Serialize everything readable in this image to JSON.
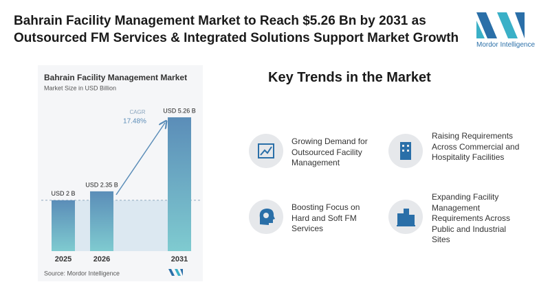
{
  "header": {
    "title": "Bahrain Facility Management Market to Reach $5.26 Bn by 2031 as Outsourced FM Services & Integrated Solutions Support Market Growth",
    "logo": "Mordor Intelligence"
  },
  "chart_data": {
    "type": "bar",
    "title": "Bahrain Facility Management Market",
    "subtitle": "Market Size in USD Billion",
    "categories": [
      "2025",
      "2026",
      "2031"
    ],
    "values": [
      2,
      2.35,
      5.26
    ],
    "value_labels": [
      "USD 2 B",
      "USD 2.35 B",
      "USD 5.26 B"
    ],
    "annotation": {
      "label": "CAGR",
      "value": "17.48%"
    },
    "source": "Source: Mordor Intelligence"
  },
  "trends": {
    "title": "Key Trends in the Market",
    "items": [
      "Growing Demand for Outsourced Facility Management",
      "Raising Requirements Across Commercial and Hospitality Facilities",
      "Boosting Focus on Hard and Soft FM Services",
      "Expanding Facility Management Requirements Across Public and Industrial Sites"
    ]
  }
}
